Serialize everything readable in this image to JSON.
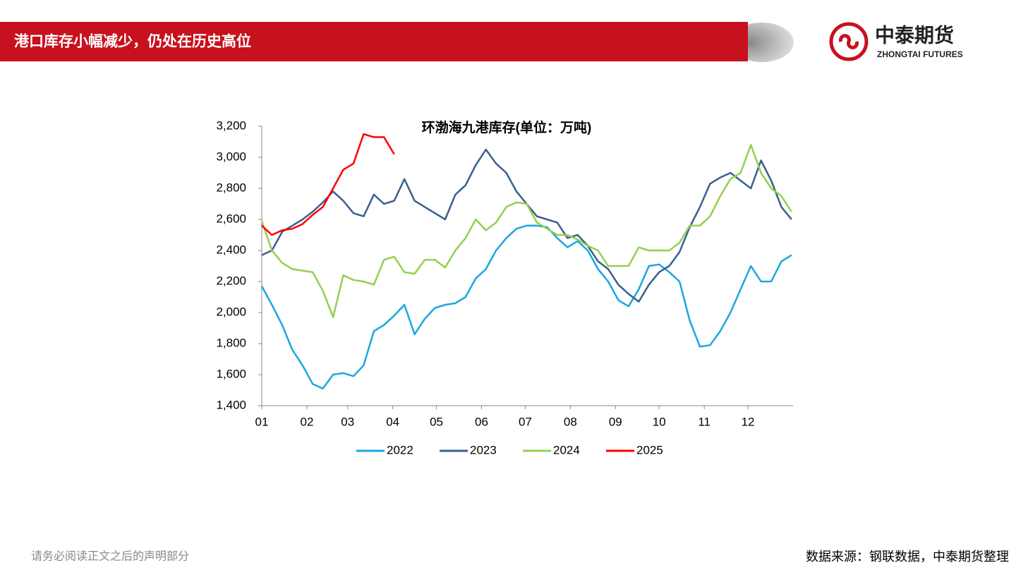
{
  "header": {
    "title": "港口库存小幅减少，仍处在历史高位",
    "logo_name": "中泰期货",
    "logo_sub": "ZHONGTAI FUTURES"
  },
  "chart_data": {
    "type": "line",
    "title": "环渤海九港库存(单位：万吨)",
    "x": [
      1,
      8,
      15,
      22,
      29,
      36,
      43,
      50,
      57,
      64,
      71,
      78,
      85,
      92,
      99,
      106,
      113,
      120,
      127,
      134,
      141,
      148,
      155,
      162,
      169,
      176,
      183,
      190,
      197,
      204,
      211,
      218,
      225,
      232,
      239,
      246,
      253,
      260,
      267,
      274,
      281,
      288,
      295,
      302,
      309,
      316,
      323,
      330,
      337,
      344,
      351,
      358,
      365
    ],
    "xlim": [
      1,
      366
    ],
    "xticks": [
      {
        "value": 1,
        "label": "01"
      },
      {
        "value": 32,
        "label": "02"
      },
      {
        "value": 60,
        "label": "03"
      },
      {
        "value": 91,
        "label": "04"
      },
      {
        "value": 121,
        "label": "05"
      },
      {
        "value": 152,
        "label": "06"
      },
      {
        "value": 182,
        "label": "07"
      },
      {
        "value": 213,
        "label": "08"
      },
      {
        "value": 244,
        "label": "09"
      },
      {
        "value": 274,
        "label": "10"
      },
      {
        "value": 305,
        "label": "11"
      },
      {
        "value": 335,
        "label": "12"
      }
    ],
    "ylim": [
      1400,
      3200
    ],
    "yticks": [
      {
        "value": 1400,
        "label": "1,400"
      },
      {
        "value": 1600,
        "label": "1,600"
      },
      {
        "value": 1800,
        "label": "1,800"
      },
      {
        "value": 2000,
        "label": "2,000"
      },
      {
        "value": 2200,
        "label": "2,200"
      },
      {
        "value": 2400,
        "label": "2,400"
      },
      {
        "value": 2600,
        "label": "2,600"
      },
      {
        "value": 2800,
        "label": "2,800"
      },
      {
        "value": 3000,
        "label": "3,000"
      },
      {
        "value": 3200,
        "label": "3,200"
      }
    ],
    "grid": false,
    "legend": "bottom",
    "series": [
      {
        "name": "2022",
        "color": "#1aa7e0",
        "values": [
          2170,
          2050,
          1920,
          1760,
          1660,
          1540,
          1510,
          1600,
          1610,
          1590,
          1660,
          1880,
          1920,
          1980,
          2050,
          1860,
          1960,
          2030,
          2050,
          2060,
          2100,
          2220,
          2280,
          2400,
          2480,
          2540,
          2560,
          2560,
          2550,
          2480,
          2420,
          2460,
          2400,
          2280,
          2200,
          2080,
          2040,
          2150,
          2300,
          2310,
          2260,
          2200,
          1950,
          1780,
          1790,
          1880,
          2000,
          2150,
          2300,
          2200,
          2200,
          2330,
          2370
        ]
      },
      {
        "name": "2023",
        "color": "#3a5f8f",
        "values": [
          2370,
          2400,
          2520,
          2560,
          2600,
          2650,
          2710,
          2780,
          2720,
          2640,
          2620,
          2760,
          2700,
          2720,
          2860,
          2720,
          2680,
          2640,
          2600,
          2760,
          2820,
          2950,
          3050,
          2960,
          2900,
          2780,
          2700,
          2620,
          2600,
          2580,
          2480,
          2500,
          2430,
          2330,
          2280,
          2180,
          2120,
          2070,
          2180,
          2260,
          2300,
          2390,
          2550,
          2680,
          2830,
          2870,
          2900,
          2850,
          2800,
          2980,
          2850,
          2680,
          2600
        ]
      },
      {
        "name": "2024",
        "color": "#92d050",
        "values": [
          2590,
          2400,
          2320,
          2280,
          2270,
          2260,
          2140,
          1970,
          2240,
          2210,
          2200,
          2180,
          2340,
          2360,
          2260,
          2250,
          2340,
          2340,
          2290,
          2400,
          2480,
          2600,
          2530,
          2580,
          2680,
          2710,
          2700,
          2580,
          2540,
          2500,
          2500,
          2470,
          2430,
          2400,
          2300,
          2300,
          2300,
          2420,
          2400,
          2400,
          2400,
          2450,
          2560,
          2560,
          2620,
          2750,
          2860,
          2900,
          3080,
          2900,
          2800,
          2750,
          2650
        ]
      },
      {
        "name": "2025",
        "color": "#ff0000",
        "values": [
          2560,
          2500,
          2530,
          2540,
          2570,
          2630,
          2680,
          2800,
          2920,
          2960,
          3150,
          3130,
          3130,
          3020,
          null,
          null,
          null,
          null,
          null,
          null,
          null,
          null,
          null,
          null,
          null,
          null,
          null,
          null,
          null,
          null,
          null,
          null,
          null,
          null,
          null,
          null,
          null,
          null,
          null,
          null,
          null,
          null,
          null,
          null,
          null,
          null,
          null,
          null,
          null,
          null,
          null,
          null,
          null
        ]
      }
    ]
  },
  "footer": {
    "disclaimer": "请务必阅读正文之后的声明部分",
    "source": "数据来源：钢联数据，中泰期货整理"
  }
}
